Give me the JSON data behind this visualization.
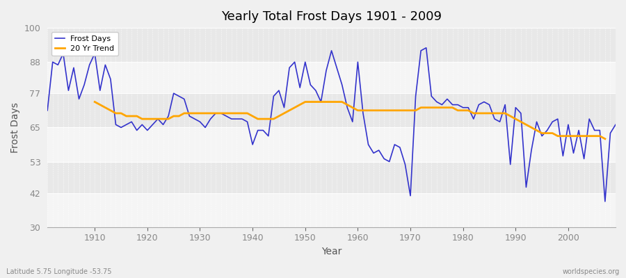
{
  "title": "Yearly Total Frost Days 1901 - 2009",
  "xlabel": "Year",
  "ylabel": "Frost Days",
  "subtitle": "Latitude 5.75 Longitude -53.75",
  "watermark": "worldspecies.org",
  "years": [
    1901,
    1902,
    1903,
    1904,
    1905,
    1906,
    1907,
    1908,
    1909,
    1910,
    1911,
    1912,
    1913,
    1914,
    1915,
    1916,
    1917,
    1918,
    1919,
    1920,
    1921,
    1922,
    1923,
    1924,
    1925,
    1926,
    1927,
    1928,
    1929,
    1930,
    1931,
    1932,
    1933,
    1934,
    1935,
    1936,
    1937,
    1938,
    1939,
    1940,
    1941,
    1942,
    1943,
    1944,
    1945,
    1946,
    1947,
    1948,
    1949,
    1950,
    1951,
    1952,
    1953,
    1954,
    1955,
    1956,
    1957,
    1958,
    1959,
    1960,
    1961,
    1962,
    1963,
    1964,
    1965,
    1966,
    1967,
    1968,
    1969,
    1970,
    1971,
    1972,
    1973,
    1974,
    1975,
    1976,
    1977,
    1978,
    1979,
    1980,
    1981,
    1982,
    1983,
    1984,
    1985,
    1986,
    1987,
    1988,
    1989,
    1990,
    1991,
    1992,
    1993,
    1994,
    1995,
    1996,
    1997,
    1998,
    1999,
    2000,
    2001,
    2002,
    2003,
    2004,
    2005,
    2006,
    2007,
    2008,
    2009
  ],
  "frost_days": [
    71,
    88,
    87,
    91,
    78,
    86,
    75,
    80,
    87,
    91,
    78,
    87,
    82,
    66,
    65,
    66,
    67,
    64,
    66,
    64,
    66,
    68,
    66,
    69,
    77,
    76,
    75,
    69,
    68,
    67,
    65,
    68,
    70,
    70,
    69,
    68,
    68,
    68,
    67,
    59,
    64,
    64,
    62,
    76,
    78,
    72,
    86,
    88,
    79,
    88,
    80,
    78,
    74,
    85,
    92,
    86,
    80,
    72,
    67,
    88,
    70,
    59,
    56,
    57,
    54,
    53,
    59,
    58,
    52,
    41,
    76,
    92,
    93,
    76,
    74,
    73,
    75,
    73,
    73,
    72,
    72,
    68,
    73,
    74,
    73,
    68,
    67,
    73,
    52,
    72,
    70,
    44,
    57,
    67,
    62,
    64,
    67,
    68,
    55,
    66,
    56,
    64,
    54,
    68,
    64,
    64,
    39,
    63,
    66
  ],
  "trend_values": [
    null,
    null,
    null,
    null,
    null,
    null,
    null,
    null,
    null,
    74,
    73,
    72,
    71,
    70,
    70,
    69,
    69,
    69,
    68,
    68,
    68,
    68,
    68,
    68,
    69,
    69,
    70,
    70,
    70,
    70,
    70,
    70,
    70,
    70,
    70,
    70,
    70,
    70,
    70,
    69,
    68,
    68,
    68,
    68,
    69,
    70,
    71,
    72,
    73,
    74,
    74,
    74,
    74,
    74,
    74,
    74,
    74,
    73,
    72,
    71,
    71,
    71,
    71,
    71,
    71,
    71,
    71,
    71,
    71,
    71,
    71,
    72,
    72,
    72,
    72,
    72,
    72,
    72,
    71,
    71,
    71,
    70,
    70,
    70,
    70,
    70,
    70,
    70,
    69,
    68,
    67,
    66,
    65,
    64,
    63,
    63,
    63,
    62,
    62,
    62,
    62,
    62,
    62,
    62,
    62,
    62,
    61,
    null,
    null
  ],
  "line_color": "#3333cc",
  "trend_color": "#FFA500",
  "bg_color": "#f0f0f0",
  "plot_bg_color_light": "#f5f5f5",
  "plot_bg_color_dark": "#e8e8e8",
  "ylim": [
    30,
    100
  ],
  "yticks": [
    30,
    42,
    53,
    65,
    77,
    88,
    100
  ],
  "xlim": [
    1901,
    2009
  ],
  "xticks": [
    1910,
    1920,
    1930,
    1940,
    1950,
    1960,
    1970,
    1980,
    1990,
    2000
  ]
}
